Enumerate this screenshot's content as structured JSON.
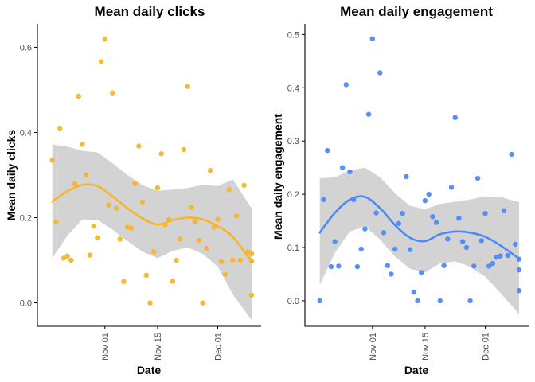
{
  "chart_data": [
    {
      "type": "scatter",
      "title": "Mean daily clicks",
      "xlabel": "Date",
      "ylabel": "Mean daily clicks",
      "x_axis": "date",
      "xlim": [
        "2018-10-17",
        "2018-12-10"
      ],
      "ylim": [
        -0.055,
        0.655
      ],
      "x_ticks": [
        "2018-11-01",
        "2018-11-15",
        "2018-12-01"
      ],
      "x_tick_labels": [
        "Nov 01",
        "Nov 15",
        "Dec 01"
      ],
      "y_ticks": [
        0.0,
        0.2,
        0.4,
        0.6
      ],
      "y_tick_labels": [
        "0.0",
        "0.2",
        "0.4",
        "0.6"
      ],
      "grid": false,
      "colors": {
        "points": "#F7B52A",
        "line": "#F7B52A",
        "band": "#D3D3D3"
      },
      "series": [
        {
          "type": "scatter",
          "points": [
            [
              "2018-10-18",
              0.335
            ],
            [
              "2018-10-19",
              0.19
            ],
            [
              "2018-10-20",
              0.41
            ],
            [
              "2018-10-21",
              0.105
            ],
            [
              "2018-10-22",
              0.11
            ],
            [
              "2018-10-23",
              0.1
            ],
            [
              "2018-10-24",
              0.28
            ],
            [
              "2018-10-25",
              0.485
            ],
            [
              "2018-10-26",
              0.372
            ],
            [
              "2018-10-27",
              0.3
            ],
            [
              "2018-10-28",
              0.112
            ],
            [
              "2018-10-29",
              0.18
            ],
            [
              "2018-10-30",
              0.153
            ],
            [
              "2018-10-31",
              0.566
            ],
            [
              "2018-11-01",
              0.619
            ],
            [
              "2018-11-02",
              0.23
            ],
            [
              "2018-11-03",
              0.493
            ],
            [
              "2018-11-04",
              0.222
            ],
            [
              "2018-11-05",
              0.15
            ],
            [
              "2018-11-06",
              0.05
            ],
            [
              "2018-11-07",
              0.178
            ],
            [
              "2018-11-08",
              0.175
            ],
            [
              "2018-11-09",
              0.28
            ],
            [
              "2018-11-10",
              0.368
            ],
            [
              "2018-11-11",
              0.237
            ],
            [
              "2018-11-12",
              0.065
            ],
            [
              "2018-11-13",
              0.0
            ],
            [
              "2018-11-14",
              0.12
            ],
            [
              "2018-11-15",
              0.27
            ],
            [
              "2018-11-16",
              0.35
            ],
            [
              "2018-11-17",
              0.183
            ],
            [
              "2018-11-18",
              0.196
            ],
            [
              "2018-11-19",
              0.051
            ],
            [
              "2018-11-20",
              0.1
            ],
            [
              "2018-11-21",
              0.15
            ],
            [
              "2018-11-22",
              0.36
            ],
            [
              "2018-11-23",
              0.508
            ],
            [
              "2018-11-24",
              0.225
            ],
            [
              "2018-11-25",
              0.191
            ],
            [
              "2018-11-26",
              0.147
            ],
            [
              "2018-11-27",
              0.0
            ],
            [
              "2018-11-28",
              0.128
            ],
            [
              "2018-11-29",
              0.311
            ],
            [
              "2018-11-30",
              0.178
            ],
            [
              "2018-12-01",
              0.196
            ],
            [
              "2018-12-02",
              0.097
            ],
            [
              "2018-12-03",
              0.067
            ],
            [
              "2018-12-04",
              0.266
            ],
            [
              "2018-12-05",
              0.1
            ],
            [
              "2018-12-06",
              0.204
            ],
            [
              "2018-12-07",
              0.1
            ],
            [
              "2018-12-08",
              0.276
            ],
            [
              "2018-12-09",
              0.12
            ],
            [
              "2018-12-10",
              0.098
            ],
            [
              "2018-12-10",
              0.115
            ],
            [
              "2018-12-10",
              0.018
            ]
          ]
        },
        {
          "type": "smooth",
          "x": [
            "2018-10-18",
            "2018-10-22",
            "2018-10-26",
            "2018-10-30",
            "2018-11-03",
            "2018-11-07",
            "2018-11-11",
            "2018-11-15",
            "2018-11-19",
            "2018-11-23",
            "2018-11-27",
            "2018-12-01",
            "2018-12-05",
            "2018-12-10"
          ],
          "y": [
            0.238,
            0.262,
            0.277,
            0.274,
            0.25,
            0.222,
            0.198,
            0.184,
            0.194,
            0.2,
            0.196,
            0.18,
            0.155,
            0.097
          ],
          "ymin": [
            0.105,
            0.158,
            0.196,
            0.195,
            0.172,
            0.145,
            0.12,
            0.105,
            0.122,
            0.13,
            0.115,
            0.085,
            0.02,
            -0.04
          ],
          "ymax": [
            0.372,
            0.367,
            0.357,
            0.353,
            0.328,
            0.3,
            0.276,
            0.263,
            0.266,
            0.27,
            0.277,
            0.274,
            0.29,
            0.222
          ]
        }
      ]
    },
    {
      "type": "scatter",
      "title": "Mean daily engagement",
      "xlabel": "Date",
      "ylabel": "Mean daily engagement",
      "x_axis": "date",
      "xlim": [
        "2018-10-17",
        "2018-12-10"
      ],
      "ylim": [
        -0.048,
        0.52
      ],
      "x_ticks": [
        "2018-11-01",
        "2018-11-15",
        "2018-12-01"
      ],
      "x_tick_labels": [
        "Nov 01",
        "Nov 15",
        "Dec 01"
      ],
      "y_ticks": [
        0.0,
        0.1,
        0.2,
        0.3,
        0.4,
        0.5
      ],
      "y_tick_labels": [
        "0.0",
        "0.1",
        "0.2",
        "0.3",
        "0.4",
        "0.5"
      ],
      "grid": false,
      "colors": {
        "points": "#4C8BF5",
        "line": "#4C8BF5",
        "band": "#D3D3D3"
      },
      "series": [
        {
          "type": "scatter",
          "points": [
            [
              "2018-10-18",
              0.0
            ],
            [
              "2018-10-19",
              0.19
            ],
            [
              "2018-10-20",
              0.282
            ],
            [
              "2018-10-21",
              0.064
            ],
            [
              "2018-10-22",
              0.111
            ],
            [
              "2018-10-23",
              0.065
            ],
            [
              "2018-10-24",
              0.25
            ],
            [
              "2018-10-25",
              0.406
            ],
            [
              "2018-10-26",
              0.242
            ],
            [
              "2018-10-27",
              0.19
            ],
            [
              "2018-10-28",
              0.064
            ],
            [
              "2018-10-29",
              0.097
            ],
            [
              "2018-10-30",
              0.135
            ],
            [
              "2018-10-31",
              0.35
            ],
            [
              "2018-11-01",
              0.492
            ],
            [
              "2018-11-02",
              0.165
            ],
            [
              "2018-11-03",
              0.428
            ],
            [
              "2018-11-04",
              0.128
            ],
            [
              "2018-11-05",
              0.066
            ],
            [
              "2018-11-06",
              0.05
            ],
            [
              "2018-11-07",
              0.097
            ],
            [
              "2018-11-08",
              0.145
            ],
            [
              "2018-11-09",
              0.164
            ],
            [
              "2018-11-10",
              0.233
            ],
            [
              "2018-11-11",
              0.096
            ],
            [
              "2018-11-12",
              0.016
            ],
            [
              "2018-11-13",
              0.0
            ],
            [
              "2018-11-14",
              0.053
            ],
            [
              "2018-11-15",
              0.188
            ],
            [
              "2018-11-16",
              0.2
            ],
            [
              "2018-11-17",
              0.158
            ],
            [
              "2018-11-18",
              0.147
            ],
            [
              "2018-11-19",
              0.0
            ],
            [
              "2018-11-20",
              0.066
            ],
            [
              "2018-11-21",
              0.116
            ],
            [
              "2018-11-22",
              0.213
            ],
            [
              "2018-11-23",
              0.344
            ],
            [
              "2018-11-24",
              0.155
            ],
            [
              "2018-11-25",
              0.111
            ],
            [
              "2018-11-26",
              0.1
            ],
            [
              "2018-11-27",
              0.0
            ],
            [
              "2018-11-28",
              0.065
            ],
            [
              "2018-11-29",
              0.23
            ],
            [
              "2018-11-30",
              0.113
            ],
            [
              "2018-12-01",
              0.164
            ],
            [
              "2018-12-02",
              0.065
            ],
            [
              "2018-12-03",
              0.07
            ],
            [
              "2018-12-04",
              0.082
            ],
            [
              "2018-12-05",
              0.084
            ],
            [
              "2018-12-06",
              0.169
            ],
            [
              "2018-12-07",
              0.085
            ],
            [
              "2018-12-08",
              0.275
            ],
            [
              "2018-12-09",
              0.106
            ],
            [
              "2018-12-10",
              0.058
            ],
            [
              "2018-12-10",
              0.078
            ],
            [
              "2018-12-10",
              0.019
            ]
          ]
        },
        {
          "type": "smooth",
          "x": [
            "2018-10-18",
            "2018-10-22",
            "2018-10-26",
            "2018-10-30",
            "2018-11-03",
            "2018-11-07",
            "2018-11-11",
            "2018-11-15",
            "2018-11-19",
            "2018-11-23",
            "2018-11-27",
            "2018-12-01",
            "2018-12-05",
            "2018-12-10"
          ],
          "y": [
            0.128,
            0.165,
            0.19,
            0.195,
            0.174,
            0.142,
            0.118,
            0.112,
            0.125,
            0.13,
            0.128,
            0.12,
            0.104,
            0.079
          ],
          "ymin": [
            0.03,
            0.09,
            0.13,
            0.14,
            0.115,
            0.083,
            0.06,
            0.053,
            0.07,
            0.074,
            0.064,
            0.045,
            0.015,
            -0.025
          ],
          "ymax": [
            0.23,
            0.232,
            0.245,
            0.25,
            0.232,
            0.202,
            0.178,
            0.172,
            0.182,
            0.186,
            0.19,
            0.196,
            0.195,
            0.185
          ]
        }
      ]
    }
  ]
}
